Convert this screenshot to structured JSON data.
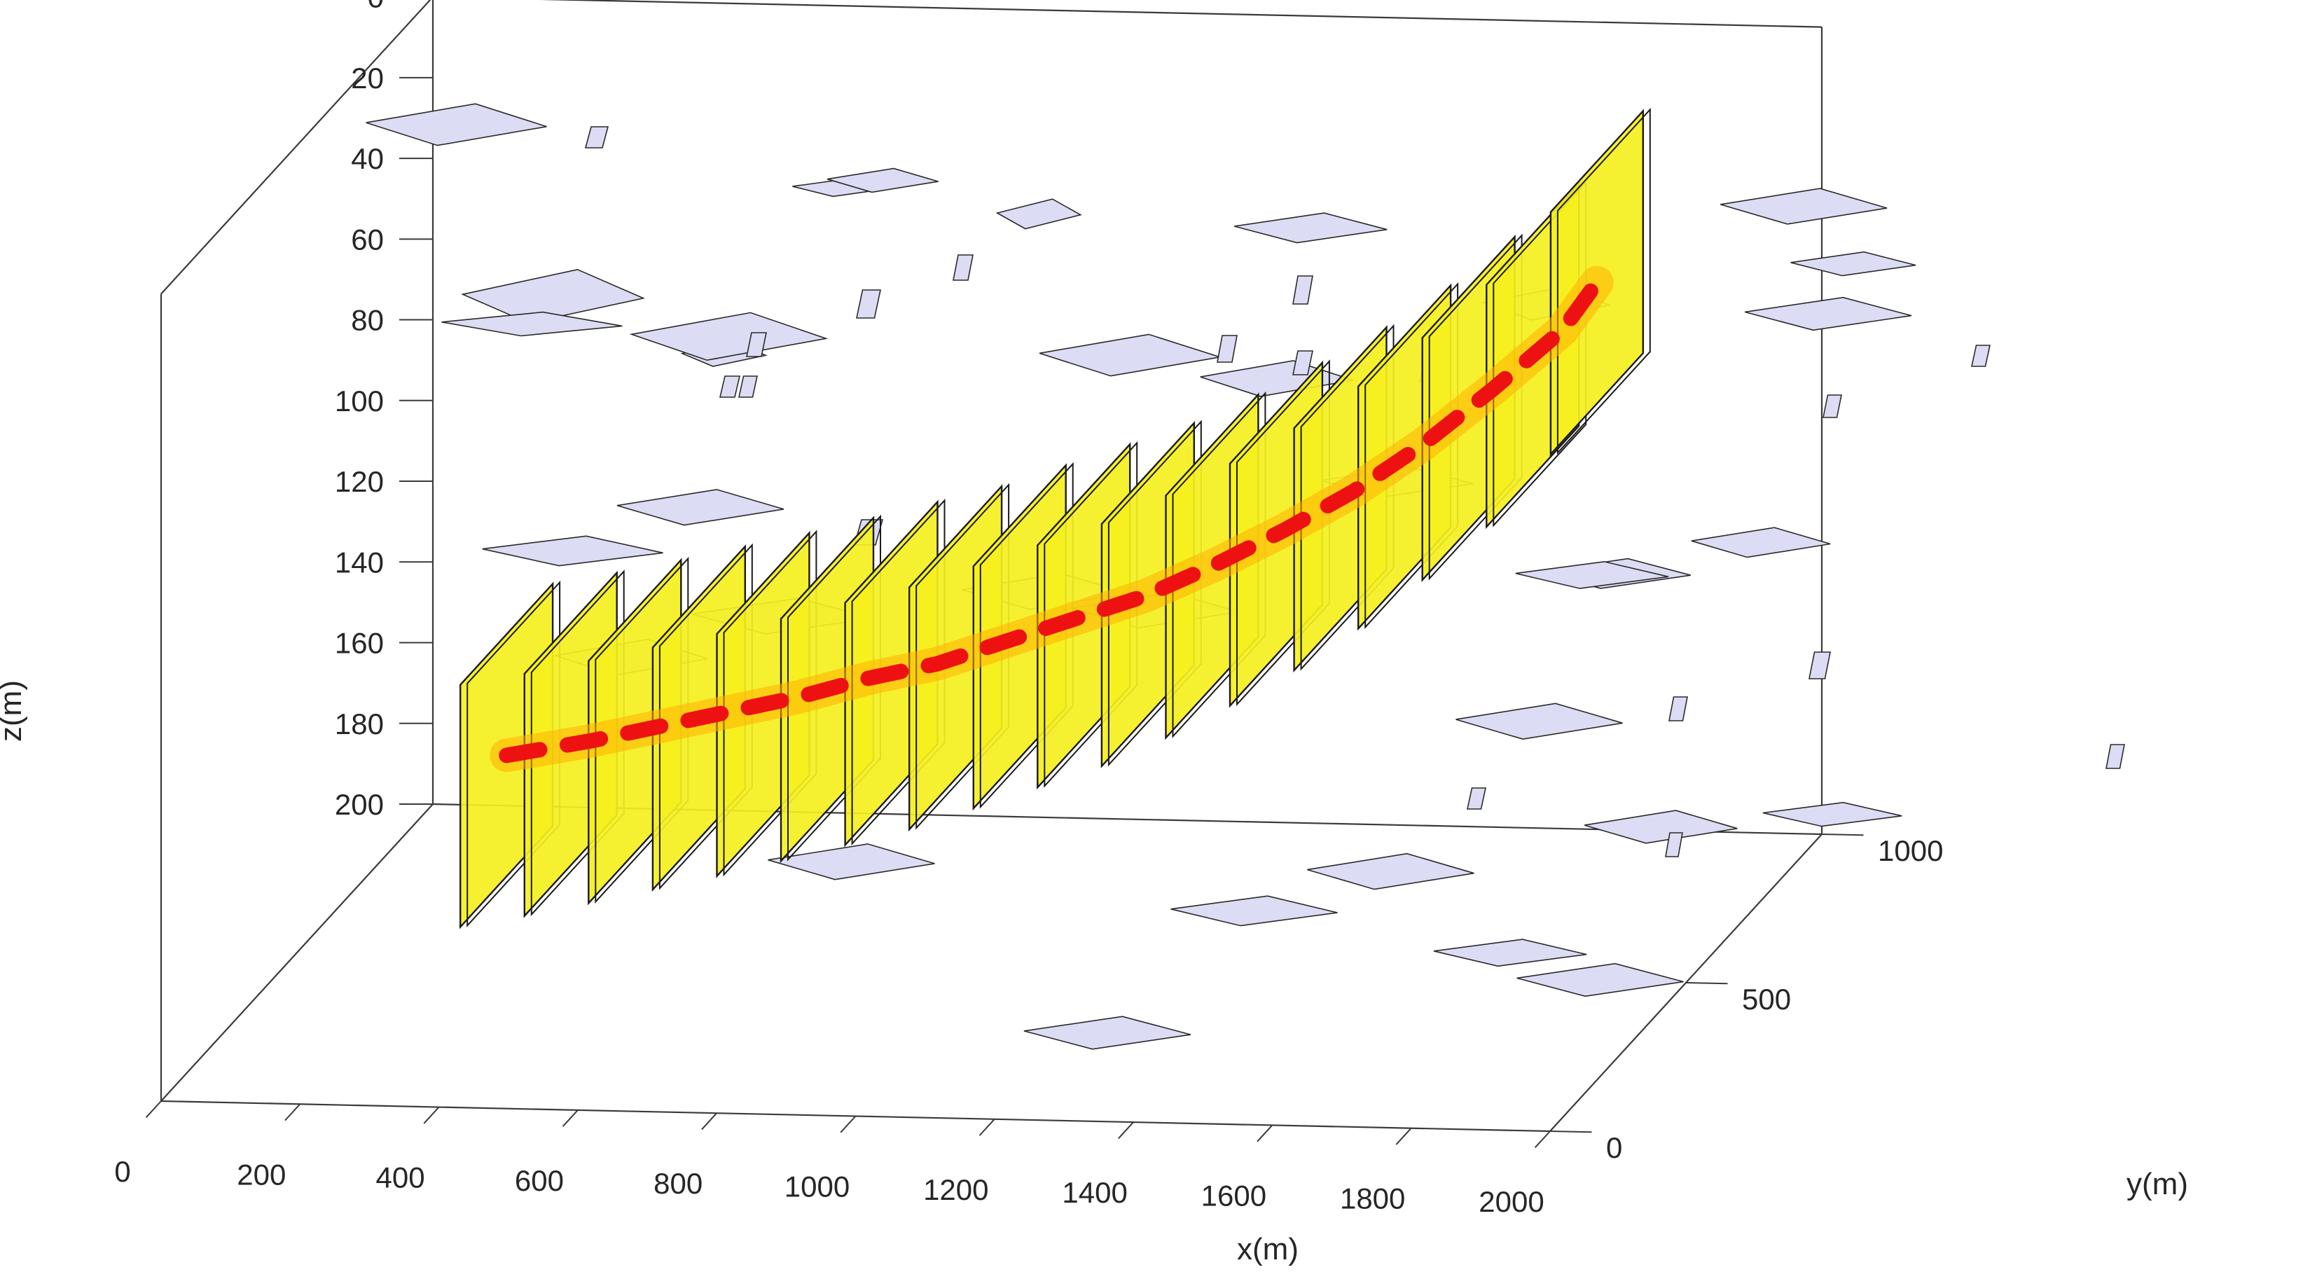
{
  "chart_data": {
    "type": "3d-plot",
    "title": "",
    "xlabel": "x(m)",
    "ylabel": "y(m)",
    "zlabel": "z(m)",
    "xlim": [
      0,
      2000
    ],
    "ylim": [
      0,
      1000
    ],
    "zlim": [
      0,
      200
    ],
    "z_reversed": true,
    "x_ticks": [
      "0",
      "200",
      "400",
      "600",
      "800",
      "1000",
      "1200",
      "1400",
      "1600",
      "1800",
      "2000"
    ],
    "y_ticks": [
      "0",
      "500",
      "1000"
    ],
    "z_ticks": [
      "0",
      "20",
      "40",
      "60",
      "80",
      "100",
      "120",
      "140",
      "160",
      "180",
      "200"
    ],
    "grid": false,
    "colors": {
      "fracture_fill": "#dcdcf4",
      "fracture_edge": "#2a2a2a",
      "panel_fill": "#f5f01e",
      "panel_edge": "#1a1a1a",
      "well_path": "#ee1111",
      "well_glow": "#ffb000",
      "box_edge": "#3a3a3a"
    },
    "wellbore_panels": {
      "count": 18,
      "note_visible": "yellow stimulated-volume panels along a red wellbore"
    },
    "wellbore_path": [
      [
        380,
        300,
        135
      ],
      [
        500,
        300,
        131
      ],
      [
        600,
        300,
        127
      ],
      [
        700,
        300,
        123
      ],
      [
        800,
        300,
        119
      ],
      [
        900,
        300,
        114
      ],
      [
        1000,
        300,
        110
      ],
      [
        1100,
        300,
        104
      ],
      [
        1200,
        300,
        98
      ],
      [
        1300,
        300,
        92
      ],
      [
        1400,
        300,
        84
      ],
      [
        1500,
        300,
        75
      ],
      [
        1600,
        300,
        65
      ],
      [
        1700,
        300,
        53
      ],
      [
        1800,
        300,
        39
      ],
      [
        1900,
        300,
        24
      ],
      [
        1950,
        300,
        12
      ]
    ]
  }
}
